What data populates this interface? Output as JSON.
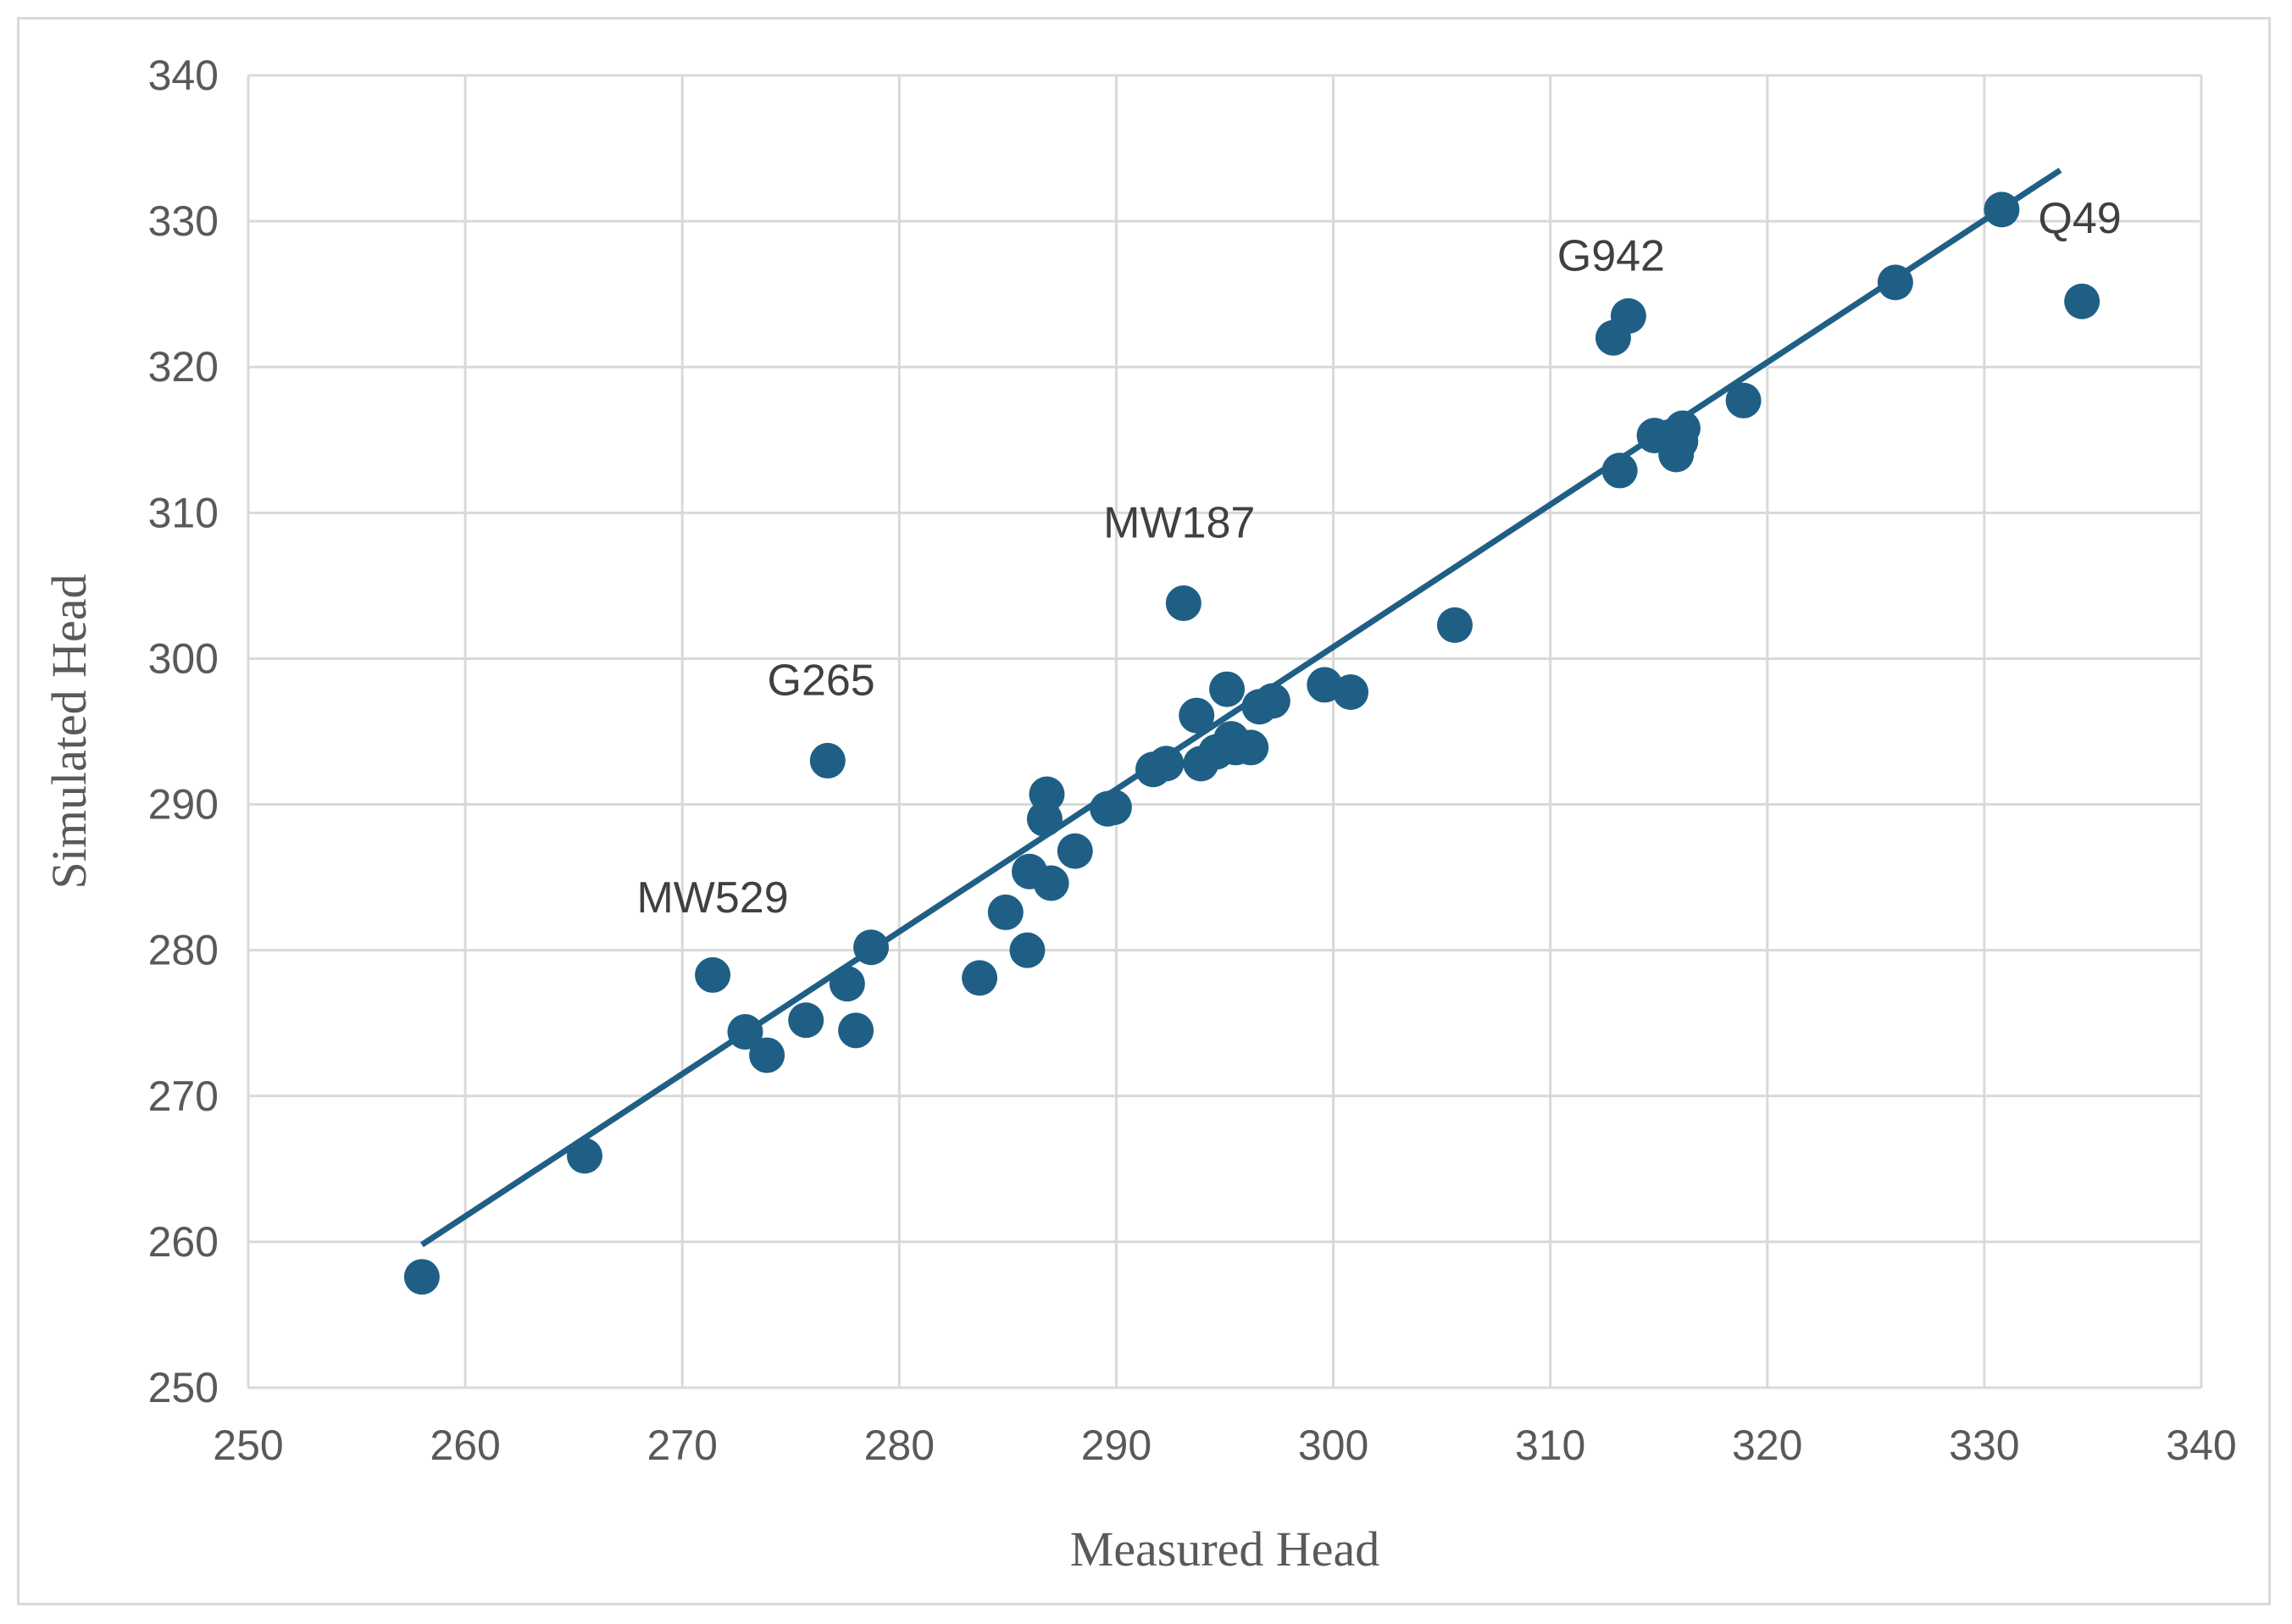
{
  "chart_data": {
    "type": "scatter",
    "title": "",
    "xlabel": "Measured Head",
    "ylabel": "Simulated Head",
    "xlim": [
      250,
      340
    ],
    "ylim": [
      250,
      340
    ],
    "x_ticks": [
      250,
      260,
      270,
      280,
      290,
      300,
      310,
      320,
      330,
      340
    ],
    "y_ticks": [
      250,
      260,
      270,
      280,
      290,
      300,
      310,
      320,
      330,
      340
    ],
    "grid": true,
    "legend": "none",
    "colors": {
      "marker": "#1f5f86",
      "trendline": "#1f5f86",
      "grid": "#d9d9d9"
    },
    "series": [
      {
        "marker": "circle",
        "points": [
          [
            258.0,
            257.6
          ],
          [
            265.5,
            265.9
          ],
          [
            271.4,
            278.3
          ],
          [
            272.9,
            274.4
          ],
          [
            273.9,
            272.8
          ],
          [
            275.7,
            275.2
          ],
          [
            276.7,
            293.0
          ],
          [
            277.6,
            277.7
          ],
          [
            278.0,
            274.5
          ],
          [
            278.7,
            280.2
          ],
          [
            283.7,
            278.1
          ],
          [
            284.9,
            282.6
          ],
          [
            285.9,
            280.0
          ],
          [
            286.0,
            285.4
          ],
          [
            286.7,
            289.0
          ],
          [
            286.8,
            290.7
          ],
          [
            287.0,
            284.6
          ],
          [
            288.1,
            286.8
          ],
          [
            289.6,
            289.7
          ],
          [
            289.9,
            289.8
          ],
          [
            291.7,
            292.4
          ],
          [
            292.3,
            292.8
          ],
          [
            293.1,
            303.8
          ],
          [
            293.7,
            296.1
          ],
          [
            293.9,
            292.8
          ],
          [
            294.6,
            293.6
          ],
          [
            295.1,
            297.9
          ],
          [
            295.3,
            294.5
          ],
          [
            295.5,
            293.9
          ],
          [
            296.2,
            293.9
          ],
          [
            296.6,
            296.7
          ],
          [
            297.2,
            297.1
          ],
          [
            299.6,
            298.2
          ],
          [
            300.8,
            297.7
          ],
          [
            305.6,
            302.3
          ],
          [
            312.9,
            322.0
          ],
          [
            313.2,
            312.9
          ],
          [
            313.6,
            323.5
          ],
          [
            314.8,
            315.3
          ],
          [
            315.5,
            315.2
          ],
          [
            315.8,
            314.0
          ],
          [
            316.0,
            314.9
          ],
          [
            316.1,
            315.8
          ],
          [
            318.9,
            317.7
          ],
          [
            325.9,
            325.8
          ],
          [
            330.8,
            330.8
          ],
          [
            334.5,
            324.5
          ]
        ]
      }
    ],
    "trendline": {
      "x": [
        258.0,
        333.5
      ],
      "y": [
        259.8,
        333.5
      ]
    },
    "annotations": [
      {
        "text": "MW529",
        "x": 271.4,
        "y": 282.6
      },
      {
        "text": "G265",
        "x": 276.4,
        "y": 297.5
      },
      {
        "text": "MW187",
        "x": 292.9,
        "y": 308.3
      },
      {
        "text": "G942",
        "x": 312.8,
        "y": 326.6
      },
      {
        "text": "Q49",
        "x": 334.4,
        "y": 329.2
      }
    ]
  }
}
